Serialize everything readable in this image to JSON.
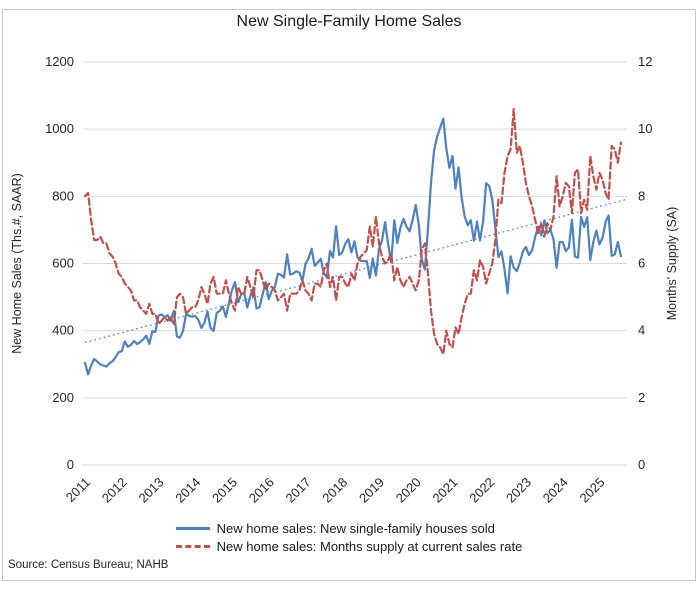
{
  "source": "Source: Census Bureau; NAHB",
  "colors": {
    "sales_blue": "#4F81BD",
    "supply_red": "#C0504D",
    "trend_blue": "#6E8FBF",
    "grid": "#D9D9D9",
    "text": "#262626",
    "border": "#C9C9C9"
  },
  "chart_data": {
    "type": "line",
    "title": "New Single-Family Home Sales",
    "grid": "horizontal-only",
    "legend_position": "bottom",
    "x_axis": {
      "start_year": 2011,
      "end_year": 2025.75,
      "tick_labels": [
        "2011",
        "2012",
        "2013",
        "2014",
        "2015",
        "2016",
        "2017",
        "2018",
        "2019",
        "2020",
        "2021",
        "2022",
        "2023",
        "2024",
        "2025"
      ],
      "tick_rotation_deg": -45
    },
    "left_axis": {
      "label": "New Home Sales (Ths.#, SAAR)",
      "min": 0,
      "max": 1200,
      "ticks": [
        0,
        200,
        400,
        600,
        800,
        1000,
        1200
      ]
    },
    "right_axis": {
      "label": "Months' Supply (SA)",
      "min": 0,
      "max": 12,
      "ticks": [
        0,
        2,
        4,
        6,
        8,
        10,
        12
      ]
    },
    "series": [
      {
        "name": "New home sales: New single-family houses sold",
        "axis": "left",
        "color": "#4F81BD",
        "style": "solid",
        "start": "2011-01",
        "frequency": "monthly",
        "values": [
          304,
          270,
          296,
          316,
          308,
          300,
          296,
          293,
          303,
          309,
          321,
          336,
          339,
          368,
          352,
          358,
          369,
          360,
          366,
          374,
          385,
          361,
          398,
          396,
          445,
          448,
          440,
          446,
          429,
          459,
          383,
          379,
          399,
          450,
          444,
          442,
          444,
          432,
          408,
          424,
          457,
          408,
          399,
          453,
          459,
          472,
          441,
          482,
          521,
          545,
          485,
          508,
          513,
          469,
          503,
          529,
          466,
          470,
          508,
          544,
          494,
          519,
          531,
          570,
          566,
          558,
          627,
          567,
          570,
          577,
          573,
          548,
          599,
          615,
          644,
          593,
          603,
          614,
          571,
          559,
          637,
          618,
          711,
          625,
          633,
          659,
          672,
          633,
          666,
          618,
          608,
          607,
          607,
          557,
          615,
          564,
          644,
          669,
          723,
          656,
          604,
          729,
          661,
          706,
          733,
          710,
          696,
          729,
          774,
          716,
          612,
          582,
          704,
          840,
          938,
          977,
          1005,
          1031,
          943,
          885,
          920,
          823,
          886,
          796,
          740,
          714,
          729,
          668,
          725,
          668,
          725,
          839,
          831,
          790,
          707,
          619,
          636,
          582,
          511,
          621,
          588,
          577,
          602,
          636,
          649,
          625,
          640,
          679,
          710,
          684,
          728,
          690,
          701,
          672,
          587,
          664,
          664,
          637,
          647,
          730,
          621,
          617,
          739,
          709,
          738,
          610,
          664,
          698,
          657,
          676,
          724,
          743,
          623,
          627,
          664,
          622
        ]
      },
      {
        "name": "New home sales: Months supply at current sales rate",
        "axis": "right",
        "color": "#C0504D",
        "style": "dashed",
        "start": "2011-01",
        "frequency": "monthly",
        "values": [
          8.0,
          8.1,
          7.3,
          6.7,
          6.7,
          6.8,
          6.6,
          6.6,
          6.3,
          6.2,
          6.0,
          5.7,
          5.6,
          5.4,
          5.3,
          5.2,
          4.9,
          4.9,
          4.7,
          4.6,
          4.5,
          4.8,
          4.5,
          4.5,
          4.2,
          4.3,
          4.4,
          4.3,
          4.4,
          4.2,
          5.0,
          5.1,
          5.0,
          4.5,
          4.6,
          4.7,
          4.7,
          4.9,
          5.3,
          5.1,
          4.8,
          5.4,
          5.6,
          5.1,
          5.1,
          5.1,
          5.5,
          5.1,
          4.8,
          4.6,
          5.3,
          5.1,
          5.1,
          5.6,
          5.3,
          5.0,
          5.8,
          5.8,
          5.5,
          5.2,
          5.4,
          5.3,
          5.2,
          4.9,
          5.0,
          5.1,
          4.6,
          5.1,
          5.1,
          5.1,
          5.2,
          5.5,
          5.2,
          5.1,
          4.9,
          5.4,
          5.4,
          5.3,
          5.8,
          6.0,
          5.3,
          5.6,
          4.9,
          5.6,
          5.6,
          5.4,
          5.3,
          5.7,
          5.5,
          6.0,
          6.2,
          6.3,
          6.4,
          7.1,
          6.5,
          7.4,
          6.6,
          6.2,
          6.0,
          6.1,
          6.3,
          5.5,
          5.9,
          5.5,
          5.3,
          5.5,
          5.6,
          5.4,
          5.2,
          5.5,
          6.4,
          6.6,
          5.7,
          4.6,
          3.9,
          3.6,
          3.5,
          3.3,
          4.0,
          3.6,
          3.5,
          4.1,
          3.9,
          4.4,
          4.8,
          5.1,
          5.1,
          5.8,
          5.5,
          6.1,
          5.9,
          5.4,
          5.7,
          6.0,
          6.7,
          7.9,
          7.8,
          8.7,
          9.2,
          9.4,
          10.6,
          9.3,
          9.5,
          9.0,
          8.4,
          8.0,
          7.7,
          7.3,
          6.9,
          7.2,
          6.8,
          7.2,
          7.0,
          7.4,
          8.6,
          7.7,
          8.0,
          8.4,
          8.3,
          7.5,
          8.7,
          8.8,
          7.5,
          7.9,
          7.6,
          9.2,
          8.6,
          8.2,
          8.7,
          8.5,
          8.1,
          7.9,
          9.5,
          9.4,
          9.0,
          9.6
        ]
      }
    ],
    "trend_line": {
      "axis": "left",
      "style": "dotted",
      "color": "#6E8FBF",
      "start_year": 2011.0,
      "end_year": 2025.7,
      "start_value": 365,
      "end_value": 790
    }
  }
}
